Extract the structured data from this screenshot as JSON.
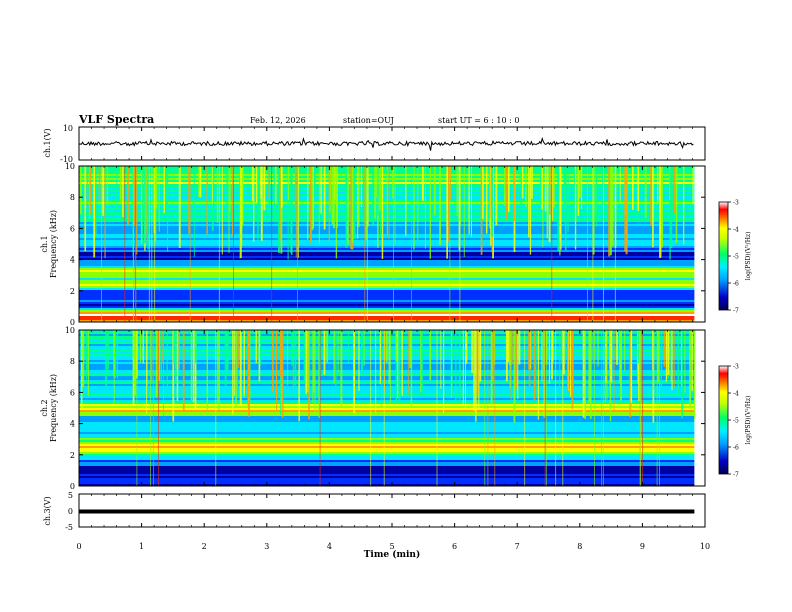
{
  "header": {
    "title": "VLF Spectra",
    "date": "Feb. 12, 2026",
    "station": "station=OUJ",
    "start": "start  UT =  6 : 10 : 0"
  },
  "colors": {
    "spectrum": [
      "#000050",
      "#0000a0",
      "#0030ff",
      "#00a0ff",
      "#00e6ff",
      "#00ff8c",
      "#8cff00",
      "#ffff00",
      "#ffa000",
      "#ff2800",
      "#ffffff"
    ]
  },
  "chart_data": [
    {
      "type": "line",
      "name": "ch1-waveform",
      "ylabel": "ch.1(V)",
      "ylim": [
        -10,
        10
      ],
      "yticks": [
        "10",
        "-10"
      ],
      "baseline": 0
    },
    {
      "type": "heatmap",
      "name": "ch1-spectrogram",
      "ylabel_top": "ch.1",
      "ylabel": "Frequency (kHz)",
      "ylim": [
        0,
        10
      ],
      "yticks": [
        "0",
        "2",
        "4",
        "6",
        "8",
        "10"
      ],
      "colorbar": {
        "label": "log(PSD)(V²/Hz)",
        "range": [
          -7,
          -3
        ],
        "ticks": [
          "-3",
          "-4",
          "-5",
          "-6",
          "-7"
        ]
      },
      "bands": [
        {
          "f": 0.5,
          "level": 9.2
        },
        {
          "f": 1.1,
          "level": 1.5
        },
        {
          "f": 2.0,
          "level": 2.5
        },
        {
          "f": 2.5,
          "level": 6.5
        },
        {
          "f": 3.0,
          "level": 4.5
        },
        {
          "f": 3.3,
          "level": 7.2
        },
        {
          "f": 4.2,
          "level": 0.7
        },
        {
          "f": 5.0,
          "level": 3.2
        },
        {
          "f": 6.0,
          "level": 3.8
        },
        {
          "f": 7.0,
          "level": 4.4
        },
        {
          "f": 8.0,
          "level": 5.3
        },
        {
          "f": 9.0,
          "level": 5.6
        },
        {
          "f": 10.0,
          "level": 5.8
        }
      ]
    },
    {
      "type": "heatmap",
      "name": "ch2-spectrogram",
      "ylabel_top": "ch.2",
      "ylabel": "Frequency (kHz)",
      "ylim": [
        0,
        10
      ],
      "yticks": [
        "0",
        "2",
        "4",
        "6",
        "8",
        "10"
      ],
      "colorbar": {
        "label": "log(PSD)(V²/Hz)",
        "range": [
          -7,
          -3
        ],
        "ticks": [
          "-3",
          "-4",
          "-5",
          "-6",
          "-7"
        ]
      },
      "bands": [
        {
          "f": 0.3,
          "level": 1.5
        },
        {
          "f": 0.8,
          "level": 0.5
        },
        {
          "f": 1.5,
          "level": 2.5
        },
        {
          "f": 2.5,
          "level": 6.8
        },
        {
          "f": 3.5,
          "level": 3.5
        },
        {
          "f": 4.3,
          "level": 3.2
        },
        {
          "f": 5.0,
          "level": 7.6
        },
        {
          "f": 5.7,
          "level": 4.2
        },
        {
          "f": 7.0,
          "level": 4.0
        },
        {
          "f": 8.0,
          "level": 3.6
        },
        {
          "f": 9.0,
          "level": 3.8
        },
        {
          "f": 10.0,
          "level": 4.0
        }
      ]
    },
    {
      "type": "line",
      "name": "ch3-waveform",
      "ylabel": "ch.3(V)",
      "ylim": [
        -5,
        5
      ],
      "yticks": [
        "5",
        "0",
        "-5"
      ],
      "baseline": 0
    }
  ],
  "time_axis": {
    "label": "Time (min)",
    "range": [
      0,
      10
    ],
    "ticks": [
      "0",
      "1",
      "2",
      "3",
      "4",
      "5",
      "6",
      "7",
      "8",
      "9",
      "10"
    ],
    "data_end": 9.83
  }
}
